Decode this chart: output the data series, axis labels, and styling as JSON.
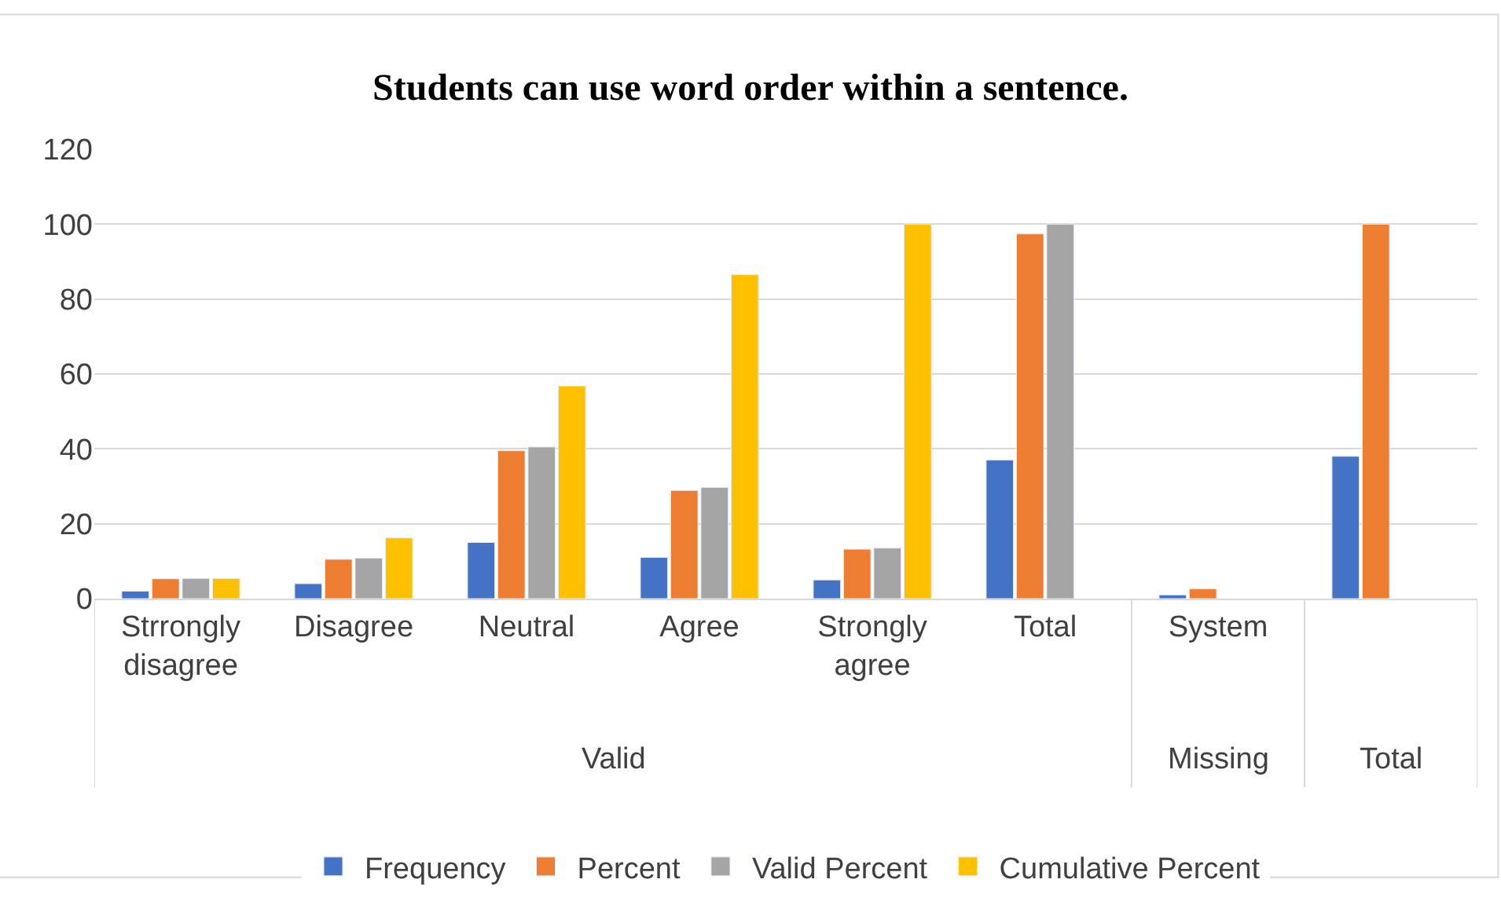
{
  "chart_data": {
    "type": "bar",
    "title": "Students can use word order within a sentence.",
    "categories": [
      "Strrongly disagree",
      "Disagree",
      "Neutral",
      "Agree",
      "Strongly agree",
      "Total",
      "System",
      null
    ],
    "series": [
      {
        "name": "Frequency",
        "color": "#4472c4",
        "values": [
          2,
          4,
          15,
          11,
          5,
          37,
          1,
          38
        ]
      },
      {
        "name": "Percent",
        "color": "#ed7d31",
        "values": [
          5.3,
          10.5,
          39.5,
          28.9,
          13.2,
          97.4,
          2.6,
          100
        ]
      },
      {
        "name": "Valid Percent",
        "color": "#a5a5a5",
        "values": [
          5.4,
          10.8,
          40.5,
          29.7,
          13.5,
          100,
          null,
          null
        ]
      },
      {
        "name": "Cumulative Percent",
        "color": "#ffc000",
        "values": [
          5.4,
          16.2,
          56.8,
          86.5,
          100,
          null,
          null,
          null
        ]
      }
    ],
    "annotations": [
      "Valid",
      "Missing",
      "Total"
    ],
    "ylim": [
      0,
      120
    ],
    "yticks": [
      0,
      20,
      40,
      60,
      80,
      100,
      120
    ],
    "grid": "y",
    "legend": "bottom"
  }
}
